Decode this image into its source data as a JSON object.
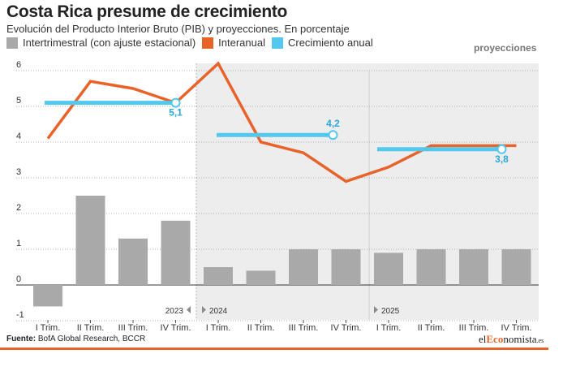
{
  "title": "Costa Rica presume de crecimiento",
  "subtitle": "Evolución del Producto Interior Bruto (PIB) y proyecciones. En porcentaje",
  "legend": {
    "bars": "Intertrimestral (con ajuste estacional)",
    "line": "Interanual",
    "annual": "Crecimiento anual"
  },
  "projections_label": "proyecciones",
  "source_label": "Fuente:",
  "source_text": " BofA Global Research, BCCR",
  "brand": {
    "pre": "el",
    "mid": "Eco",
    "post": "nomista",
    "suffix": ".es"
  },
  "colors": {
    "bars": "#a9a9a9",
    "line": "#e8632a",
    "annual": "#52c8ef",
    "projection_bg": "#ededed"
  },
  "chart_data": {
    "type": "bar",
    "categories": [
      "I Trim.",
      "II Trim.",
      "III Trim.",
      "IV Trim.",
      "I Trim.",
      "II Trim.",
      "III Trim.",
      "IV Trim.",
      "I Trim.",
      "II Trim.",
      "III Trim.",
      "IV Trim."
    ],
    "years": [
      "2023",
      "2024",
      "2025"
    ],
    "ylim": [
      -1,
      6
    ],
    "yticks": [
      -1,
      0,
      1,
      2,
      3,
      4,
      5,
      6
    ],
    "grid": true,
    "series": [
      {
        "name": "Intertrimestral (con ajuste estacional)",
        "type": "bar",
        "values": [
          -0.6,
          2.5,
          1.3,
          1.8,
          0.5,
          0.4,
          1.0,
          1.0,
          0.9,
          1.0,
          1.0,
          1.0
        ]
      },
      {
        "name": "Interanual",
        "type": "line",
        "values": [
          4.1,
          5.7,
          5.5,
          5.1,
          6.2,
          4.0,
          3.7,
          2.9,
          3.3,
          3.9,
          3.9,
          3.9
        ]
      },
      {
        "name": "Crecimiento anual",
        "type": "segment",
        "segments": [
          {
            "year": "2023",
            "value": 5.1,
            "label": "5,1"
          },
          {
            "year": "2024",
            "value": 4.2,
            "label": "4,2"
          },
          {
            "year": "2025",
            "value": 3.8,
            "label": "3,8"
          }
        ]
      }
    ]
  }
}
